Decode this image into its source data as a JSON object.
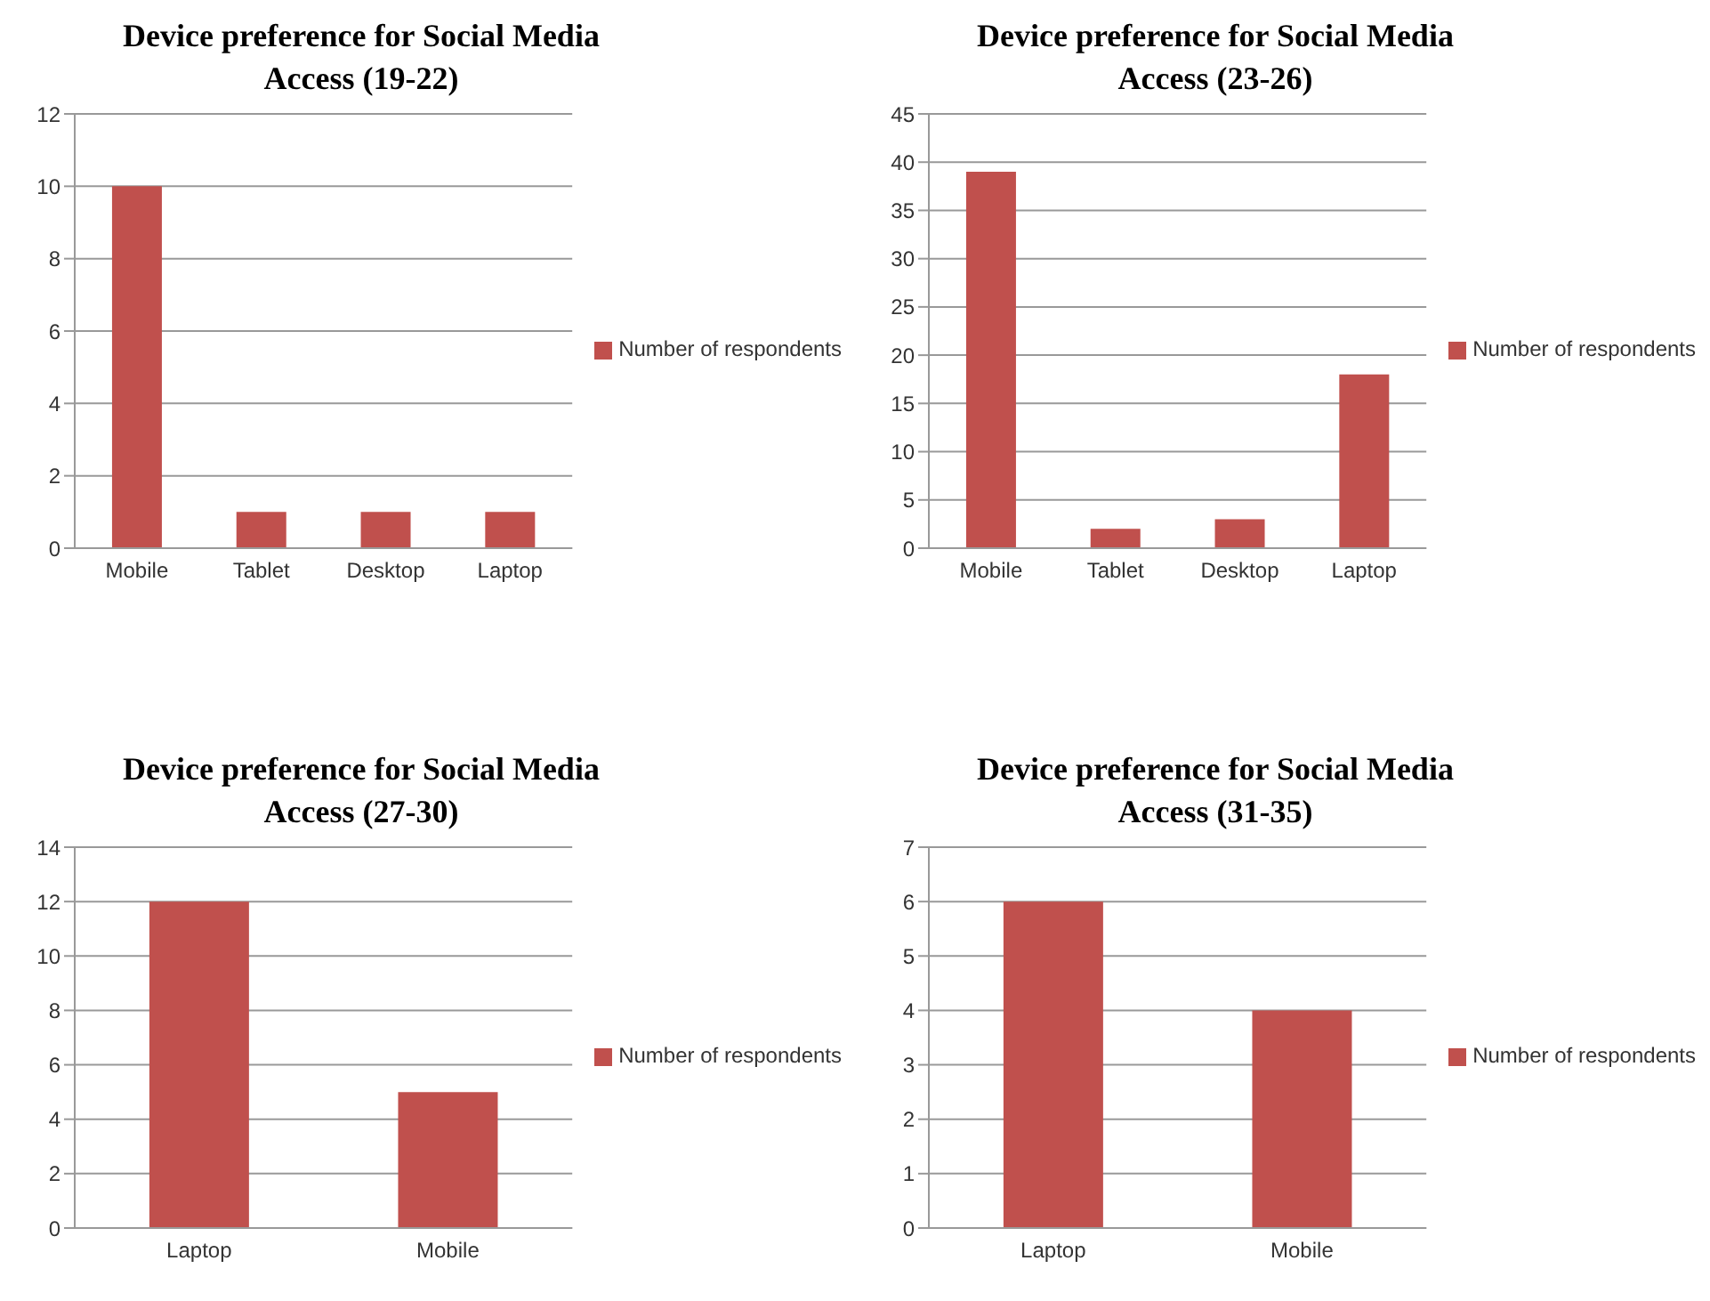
{
  "chart_data": [
    {
      "type": "bar",
      "title": "Device preference for Social Media\nAccess (19-22)",
      "categories": [
        "Mobile",
        "Tablet",
        "Desktop",
        "Laptop"
      ],
      "series": [
        {
          "name": "Number of respondents",
          "color": "#c0504d",
          "values": [
            10,
            1,
            1,
            1
          ]
        }
      ],
      "ylim": [
        0,
        12
      ],
      "yticks": [
        0,
        2,
        4,
        6,
        8,
        10,
        12
      ],
      "grid": "y",
      "legend": "right"
    },
    {
      "type": "bar",
      "title": "Device preference for Social  Media\nAccess (23-26)",
      "categories": [
        "Mobile",
        "Tablet",
        "Desktop",
        "Laptop"
      ],
      "series": [
        {
          "name": "Number of respondents",
          "color": "#c0504d",
          "values": [
            39,
            2,
            3,
            18
          ]
        }
      ],
      "ylim": [
        0,
        45
      ],
      "yticks": [
        0,
        5,
        10,
        15,
        20,
        25,
        30,
        35,
        40,
        45
      ],
      "grid": "y",
      "legend": "right"
    },
    {
      "type": "bar",
      "title": "Device preference for Social Media\nAccess (27-30)",
      "categories": [
        "Laptop",
        "Mobile"
      ],
      "series": [
        {
          "name": "Number of respondents",
          "color": "#c0504d",
          "values": [
            12,
            5
          ]
        }
      ],
      "ylim": [
        0,
        14
      ],
      "yticks": [
        0,
        2,
        4,
        6,
        8,
        10,
        12,
        14
      ],
      "grid": "y",
      "legend": "right"
    },
    {
      "type": "bar",
      "title": "Device preference for Social Media\nAccess (31-35)",
      "categories": [
        "Laptop",
        "Mobile"
      ],
      "series": [
        {
          "name": "Number of respondents",
          "color": "#c0504d",
          "values": [
            6,
            4
          ]
        }
      ],
      "ylim": [
        0,
        7
      ],
      "yticks": [
        0,
        1,
        2,
        3,
        4,
        5,
        6,
        7
      ],
      "grid": "y",
      "legend": "right"
    }
  ]
}
